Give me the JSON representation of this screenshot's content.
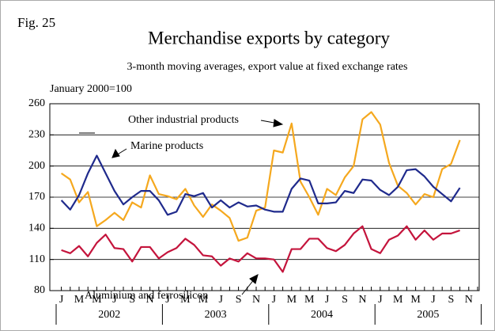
{
  "chart_data": {
    "type": "line",
    "figure_label": "Fig. 25",
    "title": "Merchandise exports by category",
    "subtitle": "3-month moving averages, export value at fixed exchange rates",
    "y_label": "January 2000=100",
    "categories": [
      "J",
      null,
      "M",
      null,
      "M",
      null,
      "J",
      null,
      "S",
      null,
      "N",
      null,
      "J",
      null,
      "M",
      null,
      "M",
      null,
      "J",
      null,
      "S",
      null,
      "N",
      null,
      "J",
      null,
      "M",
      null,
      "M",
      null,
      "J",
      null,
      "S",
      null,
      "N",
      null,
      "J",
      null,
      "M",
      null,
      "M",
      null,
      "J",
      null,
      "S",
      null,
      "N",
      null
    ],
    "years": [
      "2002",
      "2003",
      "2004",
      "2005"
    ],
    "series": [
      {
        "name": "Other industrial products",
        "color": "#f5a81e",
        "values": [
          193,
          187,
          165,
          175,
          142,
          148,
          155,
          148,
          165,
          160,
          191,
          173,
          171,
          168,
          178,
          162,
          151,
          163,
          157,
          150,
          128,
          131,
          157,
          160,
          215,
          213,
          241,
          185,
          170,
          153,
          178,
          172,
          189,
          200,
          245,
          252,
          240,
          203,
          181,
          174,
          163,
          173,
          170,
          197,
          202,
          225,
          null,
          null
        ]
      },
      {
        "name": "Marine products",
        "color": "#1f2a8c",
        "values": [
          167,
          158,
          172,
          193,
          210,
          193,
          176,
          163,
          170,
          176,
          176,
          167,
          153,
          156,
          173,
          171,
          174,
          160,
          167,
          160,
          165,
          161,
          162,
          158,
          156,
          156,
          178,
          188,
          186,
          164,
          164,
          165,
          176,
          174,
          187,
          186,
          177,
          172,
          180,
          196,
          197,
          190,
          180,
          173,
          166,
          179,
          null,
          null
        ]
      },
      {
        "name": "Aluminium and ferrosilicon",
        "color": "#c4143c",
        "values": [
          119,
          116,
          123,
          113,
          126,
          134,
          121,
          120,
          108,
          122,
          122,
          111,
          117,
          121,
          130,
          124,
          114,
          113,
          104,
          111,
          108,
          116,
          111,
          111,
          110,
          98,
          120,
          120,
          130,
          130,
          121,
          118,
          124,
          135,
          142,
          120,
          116,
          129,
          133,
          142,
          129,
          138,
          129,
          135,
          135,
          138,
          null,
          null
        ]
      }
    ],
    "ylim": [
      80,
      260
    ],
    "yticks": [
      80,
      110,
      140,
      170,
      200,
      230,
      260
    ],
    "grid": true
  }
}
